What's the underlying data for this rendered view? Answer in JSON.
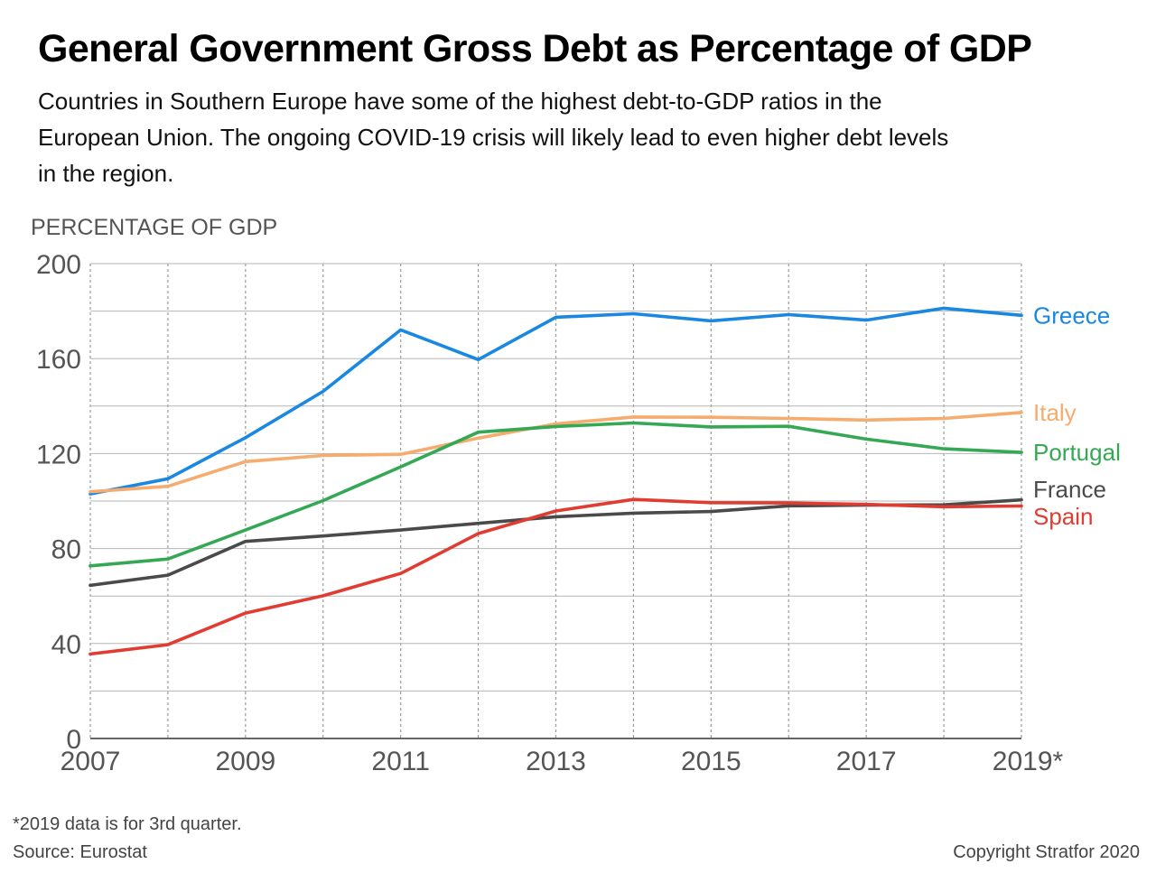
{
  "header": {
    "title": "General Government Gross Debt as Percentage of GDP",
    "subtitle": "Countries in Southern Europe have some of the highest debt-to-GDP ratios in the European Union. The ongoing COVID-19 crisis will likely lead to even higher debt levels in the region."
  },
  "footer": {
    "footnote": "*2019 data is for 3rd quarter.",
    "source": "Source: Eurostat",
    "copyright": "Copyright Stratfor 2020"
  },
  "chart_data": {
    "type": "line",
    "ylabel": "PERCENTAGE OF GDP",
    "xlabel": "",
    "x": [
      2007,
      2008,
      2009,
      2010,
      2011,
      2012,
      2013,
      2014,
      2015,
      2016,
      2017,
      2018,
      2019
    ],
    "x_tick_labels": [
      {
        "x": 2007,
        "label": "2007"
      },
      {
        "x": 2009,
        "label": "2009"
      },
      {
        "x": 2011,
        "label": "2011"
      },
      {
        "x": 2013,
        "label": "2013"
      },
      {
        "x": 2015,
        "label": "2015"
      },
      {
        "x": 2017,
        "label": "2017"
      },
      {
        "x": 2019,
        "label": "2019*"
      }
    ],
    "y_ticks": [
      0,
      40,
      80,
      120,
      160,
      200
    ],
    "ylim": [
      0,
      200
    ],
    "xlim": [
      2007,
      2019
    ],
    "grid": true,
    "legend": "direct labels at line ends",
    "series": [
      {
        "name": "Greece",
        "color": "#1a87e0",
        "values": [
          103,
          109.4,
          126.7,
          146.2,
          172.1,
          159.6,
          177.4,
          178.9,
          175.9,
          178.5,
          176.2,
          181.2,
          178.2
        ]
      },
      {
        "name": "Italy",
        "color": "#f5ac6e",
        "values": [
          103.9,
          106.2,
          116.6,
          119.2,
          119.7,
          126.5,
          132.5,
          135.4,
          135.3,
          134.8,
          134.1,
          134.8,
          137.3
        ]
      },
      {
        "name": "Portugal",
        "color": "#34a853",
        "values": [
          72.7,
          75.6,
          87.8,
          100.2,
          114.4,
          129,
          131.4,
          132.9,
          131.2,
          131.5,
          126.1,
          122,
          120.5
        ]
      },
      {
        "name": "France",
        "color": "#4a4a4a",
        "values": [
          64.5,
          68.8,
          83,
          85.3,
          87.8,
          90.6,
          93.4,
          94.9,
          95.6,
          98,
          98.3,
          98.4,
          100.5
        ]
      },
      {
        "name": "Spain",
        "color": "#e03c31",
        "values": [
          35.6,
          39.5,
          52.8,
          60.1,
          69.5,
          86.3,
          95.8,
          100.7,
          99.3,
          99.2,
          98.6,
          97.6,
          97.9
        ]
      }
    ]
  }
}
